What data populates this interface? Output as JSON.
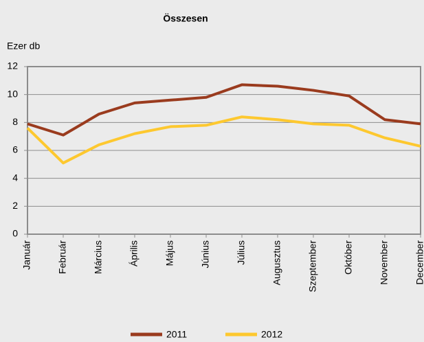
{
  "chart_data": {
    "type": "line",
    "title": "Összesen",
    "y_label": "Ezer db",
    "categories": [
      "Január",
      "Február",
      "Március",
      "Április",
      "Május",
      "Június",
      "Július",
      "Augusztus",
      "Szeptember",
      "Október",
      "November",
      "December"
    ],
    "series": [
      {
        "name": "2011",
        "color": "#9a3b1e",
        "values": [
          7.9,
          7.1,
          8.6,
          9.4,
          9.6,
          9.8,
          10.7,
          10.6,
          10.3,
          9.9,
          8.2,
          7.9
        ]
      },
      {
        "name": "2012",
        "color": "#fdc82f",
        "values": [
          7.6,
          5.1,
          6.4,
          7.2,
          7.7,
          7.8,
          8.4,
          8.2,
          7.9,
          7.8,
          6.9,
          6.3
        ]
      }
    ],
    "ylim": [
      0,
      12
    ],
    "yticks": [
      0,
      2,
      4,
      6,
      8,
      10,
      12
    ],
    "grid": true
  }
}
